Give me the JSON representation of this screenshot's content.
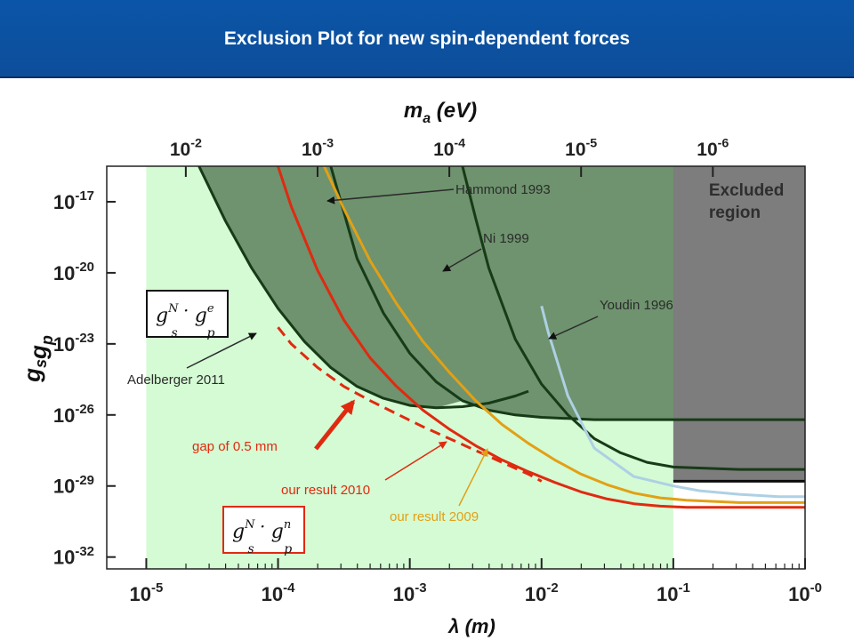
{
  "header": {
    "title": "Exclusion Plot for new spin-dependent forces"
  },
  "chart_data": {
    "type": "line",
    "xlabel": "λ (m)",
    "x2label": "m_a (eV)",
    "ylabel": "g_s g_p",
    "xscale": "log",
    "yscale": "log",
    "xlim_exp": [
      -5.3,
      0
    ],
    "ylim_exp": [
      -32.5,
      -15.5
    ],
    "x_ticks": [
      {
        "exp": -5,
        "label_base": "10",
        "label_exp": "-5"
      },
      {
        "exp": -4,
        "label_base": "10",
        "label_exp": "-4"
      },
      {
        "exp": -3,
        "label_base": "10",
        "label_exp": "-3"
      },
      {
        "exp": -2,
        "label_base": "10",
        "label_exp": "-2"
      },
      {
        "exp": -1,
        "label_base": "10",
        "label_exp": "-1"
      },
      {
        "exp": 0,
        "label_base": "10",
        "label_exp": "-0"
      }
    ],
    "top_ticks": [
      {
        "xexp": -4.7,
        "label_base": "10",
        "label_exp": "-2"
      },
      {
        "xexp": -3.7,
        "label_base": "10",
        "label_exp": "-3"
      },
      {
        "xexp": -2.7,
        "label_base": "10",
        "label_exp": "-4"
      },
      {
        "xexp": -1.7,
        "label_base": "10",
        "label_exp": "-5"
      },
      {
        "xexp": -0.7,
        "label_base": "10",
        "label_exp": "-6"
      }
    ],
    "y_ticks": [
      {
        "exp": -17,
        "label_base": "10",
        "label_exp": "-17"
      },
      {
        "exp": -20,
        "label_base": "10",
        "label_exp": "-20"
      },
      {
        "exp": -23,
        "label_base": "10",
        "label_exp": "-23"
      },
      {
        "exp": -26,
        "label_base": "10",
        "label_exp": "-26"
      },
      {
        "exp": -29,
        "label_base": "10",
        "label_exp": "-29"
      },
      {
        "exp": -32,
        "label_base": "10",
        "label_exp": "-32"
      }
    ],
    "regions": {
      "sensitivity_band_xexp": [
        -5,
        -1
      ],
      "excluded_xexp": [
        -1,
        0
      ],
      "excluded_label_lines": [
        "Excluded",
        "region"
      ]
    },
    "series": [
      {
        "name": "Adelberger 2011",
        "color": "#173a17",
        "x_exp": [
          -4.6,
          -4.4,
          -4.2,
          -4,
          -3.8,
          -3.6,
          -3.4,
          -3.2,
          -3,
          -2.8,
          -2.6,
          -2.4,
          -2.2,
          -2.1
        ],
        "y_exp": [
          -15.5,
          -17.8,
          -19.8,
          -21.5,
          -22.9,
          -24,
          -24.8,
          -25.3,
          -25.6,
          -25.7,
          -25.65,
          -25.5,
          -25.2,
          -25
        ]
      },
      {
        "name": "Hammond 1993",
        "color": "#173a17",
        "x_exp": [
          -3.6,
          -3.4,
          -3.2,
          -3,
          -2.8,
          -2.6,
          -2.4,
          -2.2,
          -2,
          -1.8,
          -1.6,
          -1.4,
          -1.2,
          -1,
          -0.5,
          0
        ],
        "y_exp": [
          -15.5,
          -19.4,
          -21.7,
          -23.4,
          -24.6,
          -25.4,
          -25.8,
          -26,
          -26.1,
          -26.15,
          -26.2,
          -26.2,
          -26.2,
          -26.2,
          -26.2,
          -26.2
        ]
      },
      {
        "name": "Ni 1999",
        "color": "#173a17",
        "x_exp": [
          -2.6,
          -2.5,
          -2.4,
          -2.2,
          -2,
          -1.8,
          -1.6,
          -1.4,
          -1.2,
          -1,
          -0.5,
          0
        ],
        "y_exp": [
          -15.5,
          -17.7,
          -19.8,
          -22.8,
          -24.7,
          -26,
          -27,
          -27.6,
          -28,
          -28.2,
          -28.3,
          -28.3
        ]
      },
      {
        "name": "Youdin 1996",
        "color": "#aed0e4",
        "x_exp": [
          -2,
          -1.95,
          -1.8,
          -1.6,
          -1.3,
          -1,
          -0.8,
          -0.5,
          -0.2,
          0
        ],
        "y_exp": [
          -21.4,
          -22.5,
          -25.2,
          -27.4,
          -28.6,
          -29,
          -29.2,
          -29.35,
          -29.45,
          -29.45
        ]
      },
      {
        "name": "our result 2009",
        "color": "#e3a015",
        "x_exp": [
          -3.65,
          -3.5,
          -3.3,
          -3.1,
          -2.9,
          -2.7,
          -2.5,
          -2.3,
          -2.1,
          -1.9,
          -1.7,
          -1.5,
          -1.3,
          -1.1,
          -0.9,
          -0.5,
          0
        ],
        "y_exp": [
          -15.5,
          -17.3,
          -19.5,
          -21.3,
          -22.9,
          -24.2,
          -25.4,
          -26.4,
          -27.2,
          -27.9,
          -28.5,
          -28.95,
          -29.3,
          -29.5,
          -29.6,
          -29.7,
          -29.7
        ]
      },
      {
        "name": "our result 2010",
        "color": "#e02a10",
        "x_exp": [
          -4,
          -3.9,
          -3.7,
          -3.5,
          -3.3,
          -3.1,
          -2.9,
          -2.7,
          -2.5,
          -2.3,
          -2.1,
          -1.9,
          -1.7,
          -1.5,
          -1.3,
          -1.1,
          -0.9,
          -0.5,
          0
        ],
        "y_exp": [
          -15.5,
          -17.2,
          -19.9,
          -22,
          -23.6,
          -24.8,
          -25.8,
          -26.6,
          -27.3,
          -27.9,
          -28.4,
          -28.85,
          -29.25,
          -29.55,
          -29.75,
          -29.85,
          -29.9,
          -29.9,
          -29.9
        ]
      },
      {
        "name": "our result 2010 projected",
        "color": "#e02a10",
        "dashed": true,
        "x_exp": [
          -4,
          -3.9,
          -3.7,
          -3.5,
          -3.3,
          -3.1,
          -2.9,
          -2.7,
          -2.5,
          -2.3,
          -2.1,
          -2
        ],
        "y_exp": [
          -22.3,
          -23,
          -24,
          -24.8,
          -25.4,
          -25.95,
          -26.5,
          -27,
          -27.5,
          -28,
          -28.5,
          -28.8
        ]
      },
      {
        "name": "Excluded region boundary",
        "color": "#0c0c0c",
        "x_exp": [
          -1,
          -0.5,
          0
        ],
        "y_exp": [
          -28.8,
          -28.8,
          -28.8
        ]
      }
    ],
    "annotations": [
      {
        "text": "Hammond 1993",
        "color": "#2b2b2b"
      },
      {
        "text": "Ni 1999",
        "color": "#2b2b2b"
      },
      {
        "text": "Youdin 1996",
        "color": "#2b2b2b"
      },
      {
        "text": "Adelberger 2011",
        "color": "#2b2b2b"
      },
      {
        "text": "gap of 0.5 mm",
        "color": "#e02a10"
      },
      {
        "text": "our result 2010",
        "color": "#e02a10"
      },
      {
        "text": "our result 2009",
        "color": "#e3a015"
      }
    ],
    "formula_boxes": [
      {
        "base1": "g",
        "sub1": "s",
        "sup1": "N",
        "dot": "·",
        "base2": "g",
        "sub2": "p",
        "sup2": "e",
        "border": "#111111"
      },
      {
        "base1": "g",
        "sub1": "s",
        "sup1": "N",
        "dot": "·",
        "base2": "g",
        "sub2": "p",
        "sup2": "n",
        "border": "#e02a10"
      }
    ]
  }
}
